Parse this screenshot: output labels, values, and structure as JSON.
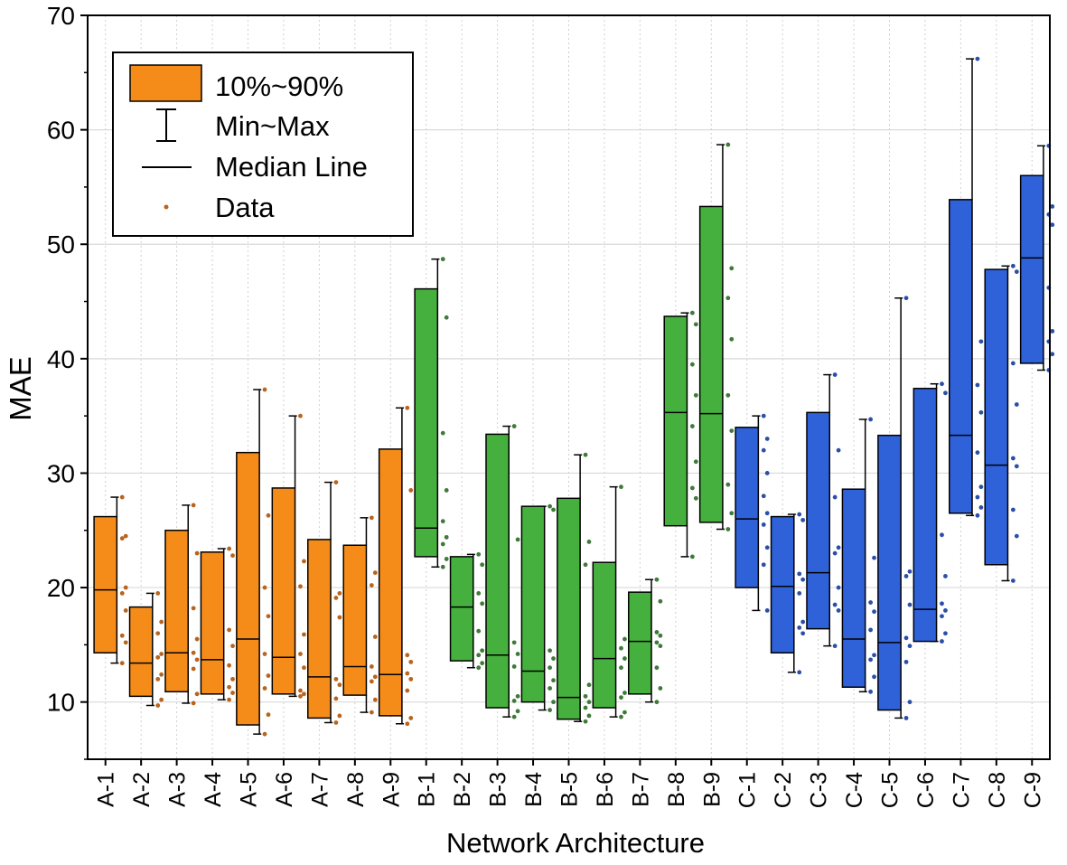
{
  "chart_data": {
    "type": "box",
    "title": "",
    "xlabel": "Network Architecture",
    "ylabel": "MAE",
    "ylim": [
      5,
      70
    ],
    "yticks": [
      10,
      20,
      30,
      40,
      50,
      60,
      70
    ],
    "grid": true,
    "legend": {
      "placement": "top-left",
      "entries": [
        {
          "label": "10%~90%",
          "symbol": "box"
        },
        {
          "label": "Min~Max",
          "symbol": "whisker"
        },
        {
          "label": "Median Line",
          "symbol": "line"
        },
        {
          "label": "Data",
          "symbol": "dot"
        }
      ]
    },
    "groups": [
      {
        "name": "A",
        "color": "#F58C1A",
        "dot_color": "#B8641E"
      },
      {
        "name": "B",
        "color": "#46B03E",
        "dot_color": "#3E7A38"
      },
      {
        "name": "C",
        "color": "#2F62D9",
        "dot_color": "#2A4FA8"
      }
    ],
    "categories": [
      "A-1",
      "A-2",
      "A-3",
      "A-4",
      "A-5",
      "A-6",
      "A-7",
      "A-8",
      "A-9",
      "B-1",
      "B-2",
      "B-3",
      "B-4",
      "B-5",
      "B-6",
      "B-7",
      "B-8",
      "B-9",
      "C-1",
      "C-2",
      "C-3",
      "C-4",
      "C-5",
      "C-6",
      "C-7",
      "C-8",
      "C-9"
    ],
    "boxes": [
      {
        "group": "A",
        "min": 13.4,
        "p10": 14.3,
        "median": 19.8,
        "p90": 26.2,
        "max": 27.9,
        "data": [
          27.9,
          24.5,
          24.3,
          20.0,
          19.5,
          18.0,
          15.8,
          15.2,
          13.4
        ]
      },
      {
        "group": "A",
        "min": 9.7,
        "p10": 10.5,
        "median": 13.4,
        "p90": 18.3,
        "max": 19.5,
        "data": [
          19.5,
          17.0,
          16.0,
          14.2,
          13.9,
          12.4,
          12.0,
          10.2,
          9.7
        ]
      },
      {
        "group": "A",
        "min": 9.9,
        "p10": 10.9,
        "median": 14.3,
        "p90": 25.0,
        "max": 27.2,
        "data": [
          27.2,
          23.0,
          18.2,
          15.5,
          14.3,
          13.7,
          12.9,
          10.7,
          9.9
        ]
      },
      {
        "group": "A",
        "min": 10.2,
        "p10": 10.7,
        "median": 13.7,
        "p90": 23.1,
        "max": 23.4,
        "data": [
          23.4,
          22.8,
          16.3,
          14.9,
          13.2,
          12.0,
          11.3,
          10.8,
          10.2
        ]
      },
      {
        "group": "A",
        "min": 7.2,
        "p10": 8.0,
        "median": 15.5,
        "p90": 31.8,
        "max": 37.3,
        "data": [
          37.3,
          26.3,
          20.0,
          17.5,
          14.2,
          12.3,
          11.2,
          8.9,
          7.2
        ]
      },
      {
        "group": "A",
        "min": 10.5,
        "p10": 10.7,
        "median": 13.9,
        "p90": 28.7,
        "max": 35.0,
        "data": [
          35.0,
          22.3,
          20.1,
          15.9,
          14.2,
          13.0,
          11.0,
          10.7,
          10.5
        ]
      },
      {
        "group": "A",
        "min": 8.2,
        "p10": 8.6,
        "median": 12.2,
        "p90": 24.2,
        "max": 29.2,
        "data": [
          29.2,
          19.5,
          19.1,
          17.4,
          12.0,
          11.5,
          10.3,
          8.8,
          8.2
        ]
      },
      {
        "group": "A",
        "min": 9.1,
        "p10": 10.6,
        "median": 13.1,
        "p90": 23.7,
        "max": 26.1,
        "data": [
          26.1,
          21.3,
          20.2,
          15.7,
          13.1,
          12.2,
          11.8,
          10.2,
          9.1
        ]
      },
      {
        "group": "A",
        "min": 8.1,
        "p10": 8.8,
        "median": 12.4,
        "p90": 32.1,
        "max": 35.7,
        "data": [
          35.7,
          28.5,
          14.1,
          13.5,
          12.5,
          12.0,
          11.0,
          8.6,
          8.1
        ]
      },
      {
        "group": "B",
        "min": 21.8,
        "p10": 22.7,
        "median": 25.2,
        "p90": 46.1,
        "max": 48.7,
        "data": [
          48.7,
          43.6,
          33.5,
          28.5,
          25.8,
          24.4,
          23.8,
          22.5,
          21.8
        ]
      },
      {
        "group": "B",
        "min": 13.0,
        "p10": 13.6,
        "median": 18.3,
        "p90": 22.7,
        "max": 22.9,
        "data": [
          22.9,
          22.0,
          19.5,
          18.6,
          16.2,
          14.5,
          14.1,
          13.4,
          13.0
        ]
      },
      {
        "group": "B",
        "min": 8.7,
        "p10": 9.5,
        "median": 14.1,
        "p90": 33.4,
        "max": 34.1,
        "data": [
          34.1,
          24.2,
          15.2,
          14.2,
          13.1,
          10.5,
          10.1,
          9.2,
          8.7
        ]
      },
      {
        "group": "B",
        "min": 9.3,
        "p10": 10.0,
        "median": 12.7,
        "p90": 27.1,
        "max": 27.1,
        "data": [
          27.1,
          26.8,
          14.5,
          13.8,
          13.0,
          11.9,
          11.2,
          10.0,
          9.3
        ]
      },
      {
        "group": "B",
        "min": 8.3,
        "p10": 8.5,
        "median": 10.4,
        "p90": 27.8,
        "max": 31.6,
        "data": [
          31.6,
          24.0,
          22.0,
          11.5,
          10.5,
          10.0,
          9.5,
          8.8,
          8.3
        ]
      },
      {
        "group": "B",
        "min": 8.7,
        "p10": 9.5,
        "median": 13.8,
        "p90": 22.2,
        "max": 28.8,
        "data": [
          28.8,
          15.5,
          14.7,
          13.8,
          13.0,
          10.8,
          10.4,
          9.1,
          8.7
        ]
      },
      {
        "group": "B",
        "min": 10.0,
        "p10": 10.7,
        "median": 15.3,
        "p90": 19.6,
        "max": 20.7,
        "data": [
          20.7,
          18.8,
          16.1,
          15.8,
          15.2,
          14.9,
          13.0,
          11.2,
          10.0
        ]
      },
      {
        "group": "B",
        "min": 22.7,
        "p10": 25.4,
        "median": 35.3,
        "p90": 43.7,
        "max": 44.0,
        "data": [
          44.0,
          43.0,
          39.5,
          36.8,
          34.1,
          31.0,
          28.7,
          27.8,
          22.7
        ]
      },
      {
        "group": "B",
        "min": 25.1,
        "p10": 25.7,
        "median": 35.2,
        "p90": 53.3,
        "max": 58.7,
        "data": [
          58.7,
          47.9,
          45.3,
          41.7,
          36.8,
          33.7,
          29.0,
          26.5,
          25.1
        ]
      },
      {
        "group": "C",
        "min": 18.0,
        "p10": 20.0,
        "median": 26.0,
        "p90": 34.0,
        "max": 35.0,
        "data": [
          35.0,
          33.0,
          32.0,
          30.0,
          28.0,
          26.5,
          25.5,
          23.5,
          22.0,
          18.0
        ]
      },
      {
        "group": "C",
        "min": 12.6,
        "p10": 14.3,
        "median": 20.1,
        "p90": 26.2,
        "max": 26.4,
        "data": [
          26.4,
          25.9,
          21.2,
          20.7,
          19.5,
          17.0,
          16.5,
          16.0,
          12.6
        ]
      },
      {
        "group": "C",
        "min": 14.9,
        "p10": 16.4,
        "median": 21.3,
        "p90": 35.3,
        "max": 38.6,
        "data": [
          38.6,
          32.0,
          27.9,
          23.5,
          23.0,
          20.0,
          18.5,
          18.0,
          14.9
        ]
      },
      {
        "group": "C",
        "min": 10.9,
        "p10": 11.3,
        "median": 15.5,
        "p90": 28.6,
        "max": 34.7,
        "data": [
          34.7,
          22.6,
          18.7,
          17.9,
          16.3,
          14.1,
          13.7,
          12.2,
          10.9
        ]
      },
      {
        "group": "C",
        "min": 8.6,
        "p10": 9.3,
        "median": 15.2,
        "p90": 33.3,
        "max": 45.3,
        "data": [
          45.3,
          21.4,
          21.0,
          18.5,
          15.6,
          14.9,
          13.5,
          10.0,
          8.6
        ]
      },
      {
        "group": "C",
        "min": 15.3,
        "p10": 15.3,
        "median": 18.1,
        "p90": 37.4,
        "max": 37.8,
        "data": [
          37.8,
          37.0,
          24.6,
          21.0,
          18.6,
          18.0,
          17.5,
          16.0,
          15.3
        ]
      },
      {
        "group": "C",
        "min": 26.3,
        "p10": 26.5,
        "median": 33.3,
        "p90": 53.9,
        "max": 66.2,
        "data": [
          66.2,
          41.5,
          37.7,
          35.3,
          31.8,
          28.8,
          27.9,
          27.0,
          26.3
        ]
      },
      {
        "group": "C",
        "min": 20.6,
        "p10": 22.0,
        "median": 30.7,
        "p90": 47.8,
        "max": 48.1,
        "data": [
          48.1,
          47.6,
          39.6,
          36.0,
          31.3,
          30.6,
          26.8,
          24.5,
          20.6
        ]
      },
      {
        "group": "C",
        "min": 39.0,
        "p10": 39.6,
        "median": 48.8,
        "p90": 56.0,
        "max": 58.6,
        "data": [
          58.6,
          53.3,
          52.6,
          51.7,
          46.2,
          42.4,
          41.5,
          40.4,
          39.0
        ]
      }
    ]
  }
}
